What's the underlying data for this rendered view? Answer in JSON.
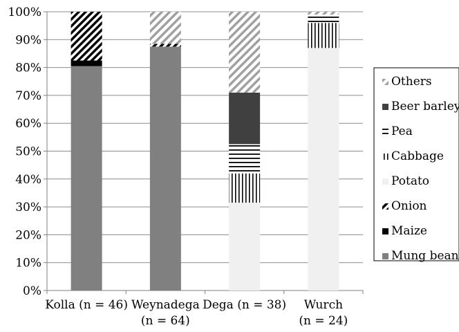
{
  "chart_data": {
    "type": "bar",
    "stacked": true,
    "percent": true,
    "categories": [
      {
        "lines": [
          "Kolla (n = 46)"
        ]
      },
      {
        "lines": [
          "Weynadega",
          "(n = 64)"
        ]
      },
      {
        "lines": [
          "Dega (n = 38)"
        ]
      },
      {
        "lines": [
          "Wurch",
          "(n = 24)"
        ]
      }
    ],
    "series": [
      {
        "name": "Mung bean",
        "fill": "#808080",
        "pattern": "solid",
        "values": [
          80.5,
          87.5,
          0,
          0
        ]
      },
      {
        "name": "Maize",
        "fill": "#000000",
        "pattern": "solid",
        "values": [
          2,
          0,
          0,
          0
        ]
      },
      {
        "name": "Onion",
        "fill": "#000000",
        "pattern": "diag-dense",
        "values": [
          17.5,
          1,
          0,
          0
        ]
      },
      {
        "name": "Potato",
        "fill": "#f0f0f0",
        "pattern": "solid",
        "values": [
          0,
          0,
          31.5,
          87
        ]
      },
      {
        "name": "Cabbage",
        "fill": "#000000",
        "pattern": "vertical",
        "values": [
          0,
          0,
          10.5,
          9
        ]
      },
      {
        "name": "Pea",
        "fill": "#000000",
        "pattern": "horizontal",
        "values": [
          0,
          0,
          10.5,
          3
        ]
      },
      {
        "name": "Beer barley",
        "fill": "#404040",
        "pattern": "solid",
        "values": [
          0,
          0,
          18.5,
          0
        ]
      },
      {
        "name": "Others",
        "fill": "#999999",
        "pattern": "diag-light",
        "values": [
          0,
          11.5,
          29,
          1
        ]
      }
    ],
    "legend_order": [
      "Others",
      "Beer barley",
      "Pea",
      "Cabbage",
      "Potato",
      "Onion",
      "Maize",
      "Mung bean"
    ],
    "yticks": [
      "0%",
      "10%",
      "20%",
      "30%",
      "40%",
      "50%",
      "60%",
      "70%",
      "80%",
      "90%",
      "100%"
    ],
    "ylim": [
      0,
      100
    ],
    "grid": true,
    "legend_position": "right",
    "title": "",
    "xlabel": "",
    "ylabel": ""
  }
}
